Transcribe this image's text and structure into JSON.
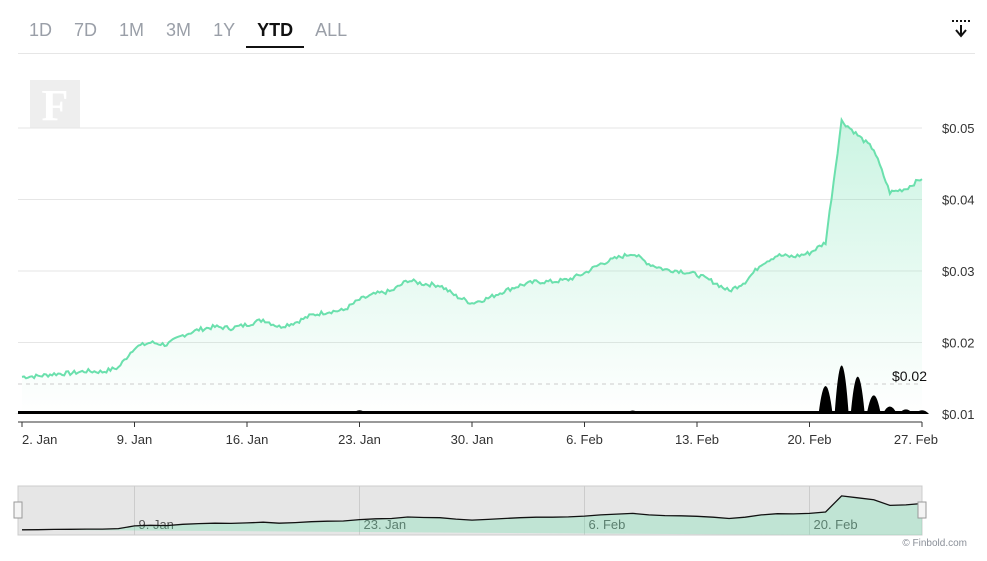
{
  "range_tabs": [
    {
      "label": "1D",
      "active": false
    },
    {
      "label": "7D",
      "active": false
    },
    {
      "label": "1M",
      "active": false
    },
    {
      "label": "3M",
      "active": false
    },
    {
      "label": "1Y",
      "active": false
    },
    {
      "label": "YTD",
      "active": true
    },
    {
      "label": "ALL",
      "active": false
    }
  ],
  "credit": "© Finbold.com",
  "colors": {
    "line": "#6be0ad",
    "area_top": "#6be0ad",
    "volume": "#000000",
    "navigator_bg": "#e6e6e6",
    "grid": "#e6e6e6",
    "axis_text": "#333333"
  },
  "icons": {
    "download": "download-icon",
    "watermark": "finbold-logo"
  },
  "chart_data": {
    "type": "line",
    "xlabel": "",
    "ylabel": "",
    "x_ticks": [
      "2. Jan",
      "9. Jan",
      "16. Jan",
      "23. Jan",
      "30. Jan",
      "6. Feb",
      "13. Feb",
      "20. Feb",
      "27. Feb"
    ],
    "y_ticks": [
      "$0.01",
      "$0.02",
      "$0.03",
      "$0.04",
      "$0.05"
    ],
    "ylim": [
      0.01,
      0.05
    ],
    "xlim": [
      "2023-01-02",
      "2023-02-27"
    ],
    "grid": true,
    "legend": "none",
    "price_label": "$0.02",
    "navigator_ticks": [
      "9. Jan",
      "23. Jan",
      "6. Feb",
      "20. Feb"
    ],
    "series": [
      {
        "type": "line",
        "x": [
          "2023-01-02",
          "2023-01-03",
          "2023-01-04",
          "2023-01-05",
          "2023-01-06",
          "2023-01-07",
          "2023-01-08",
          "2023-01-09",
          "2023-01-10",
          "2023-01-11",
          "2023-01-12",
          "2023-01-13",
          "2023-01-14",
          "2023-01-15",
          "2023-01-16",
          "2023-01-17",
          "2023-01-18",
          "2023-01-19",
          "2023-01-20",
          "2023-01-21",
          "2023-01-22",
          "2023-01-23",
          "2023-01-24",
          "2023-01-25",
          "2023-01-26",
          "2023-01-27",
          "2023-01-28",
          "2023-01-29",
          "2023-01-30",
          "2023-01-31",
          "2023-02-01",
          "2023-02-02",
          "2023-02-03",
          "2023-02-04",
          "2023-02-05",
          "2023-02-06",
          "2023-02-07",
          "2023-02-08",
          "2023-02-09",
          "2023-02-10",
          "2023-02-11",
          "2023-02-12",
          "2023-02-13",
          "2023-02-14",
          "2023-02-15",
          "2023-02-16",
          "2023-02-17",
          "2023-02-18",
          "2023-02-19",
          "2023-02-20",
          "2023-02-21",
          "2023-02-22",
          "2023-02-23",
          "2023-02-24",
          "2023-02-25",
          "2023-02-26",
          "2023-02-27"
        ],
        "values": [
          0.0152,
          0.0153,
          0.0156,
          0.0157,
          0.016,
          0.0159,
          0.0165,
          0.0193,
          0.02,
          0.0197,
          0.021,
          0.0218,
          0.0222,
          0.022,
          0.0225,
          0.0232,
          0.0222,
          0.0228,
          0.0238,
          0.0243,
          0.0245,
          0.026,
          0.0268,
          0.0272,
          0.0287,
          0.0282,
          0.028,
          0.0265,
          0.0255,
          0.0262,
          0.0272,
          0.028,
          0.0285,
          0.0285,
          0.0288,
          0.0297,
          0.031,
          0.0318,
          0.0325,
          0.031,
          0.0302,
          0.03,
          0.0295,
          0.0285,
          0.0272,
          0.0285,
          0.031,
          0.0322,
          0.032,
          0.0325,
          0.034,
          0.051,
          0.049,
          0.047,
          0.041,
          0.0415,
          0.043
        ]
      },
      {
        "type": "bar",
        "name": "volume",
        "x": [
          "2023-01-02",
          "2023-01-09",
          "2023-01-16",
          "2023-01-23",
          "2023-01-30",
          "2023-02-06",
          "2023-02-09",
          "2023-02-13",
          "2023-02-16",
          "2023-02-20",
          "2023-02-21",
          "2023-02-22",
          "2023-02-23",
          "2023-02-24",
          "2023-02-25",
          "2023-02-26",
          "2023-02-27"
        ],
        "values": [
          0.3,
          2.0,
          1.0,
          4.0,
          0.8,
          2.2,
          3.8,
          0.9,
          1.6,
          1.5,
          30.0,
          52.0,
          40.0,
          20.0,
          8.0,
          5.0,
          4.0
        ]
      }
    ]
  }
}
